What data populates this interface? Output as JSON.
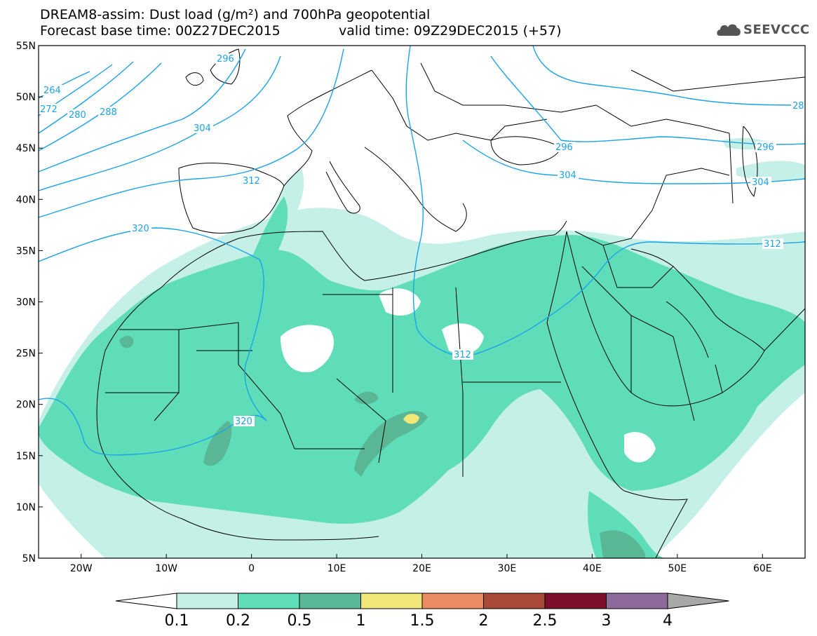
{
  "title": {
    "line1": "DREAM8-assim: Dust load (g/m²) and 700hPa geopotential",
    "line2": "Forecast base time: 00Z27DEC2015",
    "line3": "valid time: 09Z29DEC2015 (+57)"
  },
  "logo": {
    "text": "SEEVCCC",
    "icon": "cloud-icon"
  },
  "axes": {
    "lat_labels": [
      "55N",
      "50N",
      "45N",
      "40N",
      "35N",
      "30N",
      "25N",
      "20N",
      "15N",
      "10N",
      "5N"
    ],
    "lon_labels": [
      "20W",
      "10W",
      "0",
      "10E",
      "20E",
      "30E",
      "40E",
      "50E",
      "60E"
    ],
    "lat_values": [
      55,
      50,
      45,
      40,
      35,
      30,
      25,
      20,
      15,
      10,
      5
    ],
    "lon_values": [
      -20,
      -10,
      0,
      10,
      20,
      30,
      40,
      50,
      60
    ],
    "lon_range": [
      -25,
      65
    ],
    "lat_range": [
      5,
      55
    ]
  },
  "contour_labels": [
    "264",
    "272",
    "280",
    "288",
    "296",
    "304",
    "312",
    "320",
    "28",
    "296",
    "304",
    "312",
    "312",
    "320",
    "304",
    "296"
  ],
  "colorbar": {
    "labels": [
      "0.1",
      "0.2",
      "0.5",
      "1",
      "1.5",
      "2",
      "2.5",
      "3",
      "4"
    ],
    "colors": [
      "#c4f0e8",
      "#5fddb8",
      "#59b796",
      "#f2e87a",
      "#e98c62",
      "#a84a37",
      "#7e0f2a",
      "#8e6a9d",
      "#a8a8a8"
    ]
  },
  "colors": {
    "contour": "#1aa3e8",
    "coast": "#000000"
  }
}
